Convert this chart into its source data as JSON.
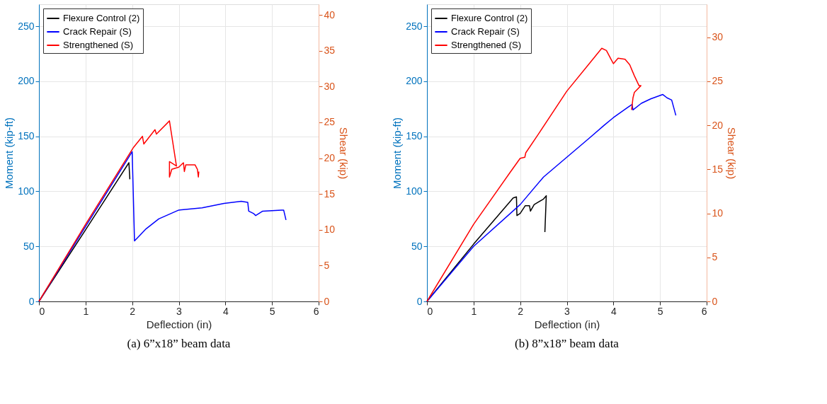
{
  "chart_data": [
    {
      "type": "line",
      "xlabel": "Deflection (in)",
      "ylabel": "Moment (kip-ft)",
      "y2label": "Shear (kip)",
      "annotations": [
        "(a)  6”x18” beam data"
      ],
      "xlim": [
        0,
        6
      ],
      "xticks": [
        0,
        1,
        2,
        3,
        4,
        5,
        6
      ],
      "ylim": [
        0,
        270
      ],
      "yticks": [
        0,
        50,
        100,
        150,
        200,
        250
      ],
      "y2lim": [
        0,
        41.5
      ],
      "y2ticks": [
        0,
        5,
        10,
        15,
        20,
        25,
        30,
        35,
        40
      ],
      "grid": true,
      "legend": "top left",
      "line_style": "solid",
      "marker": "none",
      "series": [
        {
          "name": "Flexure Control (2)",
          "color": "#000000",
          "x": [
            0,
            1.0,
            1.93,
            1.95
          ],
          "values": [
            0,
            65,
            126,
            111
          ]
        },
        {
          "name": "Crack Repair (S)",
          "color": "#0000ff",
          "x": [
            0,
            1.0,
            2.0,
            2.05,
            2.3,
            2.57,
            3.0,
            3.5,
            3.97,
            4.34,
            4.48,
            4.5,
            4.6,
            4.65,
            4.8,
            5.2,
            5.25,
            5.3
          ],
          "values": [
            0,
            68,
            136,
            55,
            66,
            75,
            83,
            85,
            89,
            91,
            90,
            82,
            80,
            78,
            82,
            83,
            83,
            74
          ]
        },
        {
          "name": "Strengthened (S)",
          "color": "#ff0000",
          "x": [
            0,
            1.0,
            2.03,
            2.22,
            2.25,
            2.49,
            2.52,
            2.8,
            2.95,
            2.8,
            2.8,
            2.85,
            3.0,
            3.1,
            3.12,
            3.15,
            3.35,
            3.4,
            3.42,
            3.43
          ],
          "values": [
            0,
            70,
            140,
            150,
            143,
            156,
            152,
            164,
            123,
            127,
            113,
            120,
            122,
            126,
            118,
            124,
            124,
            120,
            113,
            118
          ]
        }
      ]
    },
    {
      "type": "line",
      "xlabel": "Deflection (in)",
      "ylabel": "Moment (kip-ft)",
      "y2label": "Shear (kip)",
      "annotations": [
        "(b)  8”x18” beam data"
      ],
      "xlim": [
        0,
        6
      ],
      "xticks": [
        0,
        1,
        2,
        3,
        4,
        5,
        6
      ],
      "ylim": [
        0,
        270
      ],
      "yticks": [
        0,
        50,
        100,
        150,
        200,
        250
      ],
      "y2lim": [
        0,
        33.75
      ],
      "y2ticks": [
        0,
        5,
        10,
        15,
        20,
        25,
        30
      ],
      "grid": true,
      "legend": "top left",
      "line_style": "solid",
      "marker": "none",
      "series": [
        {
          "name": "Flexure Control (2)",
          "color": "#000000",
          "x": [
            0,
            1.0,
            1.85,
            1.92,
            1.93,
            2.0,
            2.11,
            2.2,
            2.22,
            2.3,
            2.5,
            2.56,
            2.53
          ],
          "values": [
            0,
            52,
            94,
            95,
            78,
            80,
            87,
            87,
            82,
            88,
            93,
            96,
            63
          ]
        },
        {
          "name": "Crack Repair (S)",
          "color": "#0000ff",
          "x": [
            0,
            1.0,
            2.0,
            2.5,
            3.0,
            3.5,
            3.8,
            4.0,
            4.3,
            4.4,
            4.42,
            4.6,
            4.8,
            5.06,
            5.15,
            5.25,
            5.34
          ],
          "values": [
            0,
            50,
            88,
            113,
            131,
            149,
            160,
            167,
            176,
            179,
            174,
            180,
            184,
            188,
            185,
            183,
            169
          ]
        },
        {
          "name": "Strengthened (S)",
          "color": "#ff0000",
          "x": [
            0,
            1.0,
            1.78,
            2.0,
            2.1,
            2.12,
            2.39,
            3.0,
            3.5,
            3.75,
            3.85,
            3.95,
            4.0,
            4.1,
            4.25,
            4.35,
            4.4,
            4.45,
            4.55,
            4.59,
            4.45,
            4.42,
            4.39
          ],
          "values": [
            0,
            70,
            117,
            130,
            131,
            135,
            152,
            191,
            217,
            230,
            228,
            220,
            216,
            221,
            220,
            215,
            210,
            205,
            196,
            196,
            190,
            185,
            174
          ]
        }
      ]
    }
  ]
}
